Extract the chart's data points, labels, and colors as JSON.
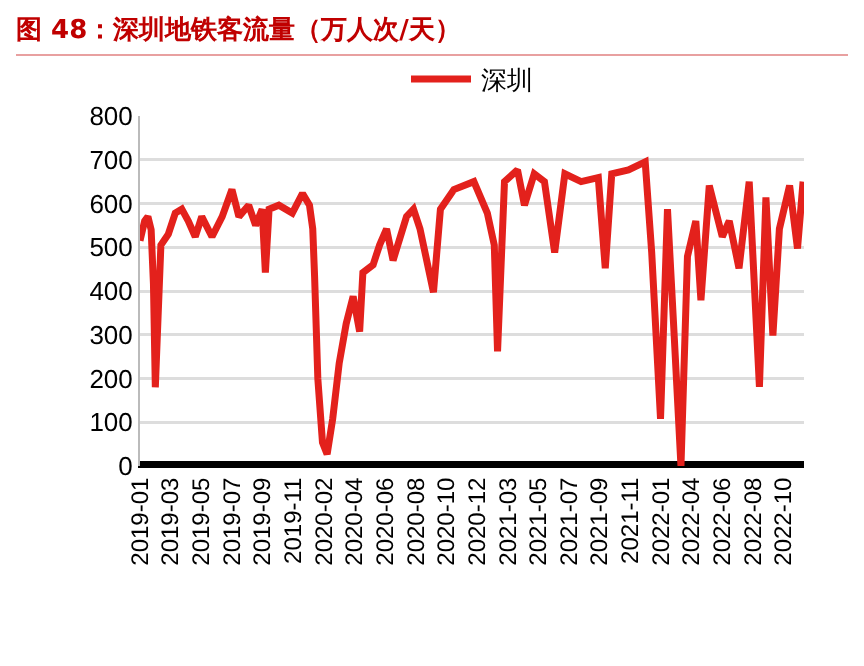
{
  "chart_data": {
    "type": "line",
    "title": "图 48：深圳地铁客流量（万人次/天）",
    "x": [
      "2019-01-01",
      "2019-01-11",
      "2019-01-18",
      "2019-01-25",
      "2019-01-30",
      "2019-02-03",
      "2019-02-09",
      "2019-02-15",
      "2019-03-03",
      "2019-03-18",
      "2019-04-01",
      "2019-04-15",
      "2019-04-30",
      "2019-05-14",
      "2019-06-05",
      "2019-06-27",
      "2019-07-18",
      "2019-08-02",
      "2019-08-23",
      "2019-09-07",
      "2019-09-21",
      "2019-09-28",
      "2019-10-06",
      "2019-10-27",
      "2019-11-25",
      "2019-12-17",
      "2020-01-01",
      "2020-01-08",
      "2020-01-12",
      "2020-01-19",
      "2020-01-29",
      "2020-02-08",
      "2020-02-20",
      "2020-03-05",
      "2020-03-20",
      "2020-04-04",
      "2020-04-18",
      "2020-04-25",
      "2020-05-17",
      "2020-05-31",
      "2020-06-15",
      "2020-06-29",
      "2020-07-28",
      "2020-08-12",
      "2020-08-26",
      "2020-09-24",
      "2020-10-09",
      "2020-11-07",
      "2020-12-20",
      "2021-01-18",
      "2021-02-02",
      "2021-02-09",
      "2021-02-24",
      "2021-03-24",
      "2021-04-08",
      "2021-04-29",
      "2021-05-21",
      "2021-06-12",
      "2021-07-04",
      "2021-08-08",
      "2021-09-14",
      "2021-09-29",
      "2021-10-13",
      "2021-11-18",
      "2021-12-24",
      "2022-01-07",
      "2022-01-26",
      "2022-02-10",
      "2022-02-24",
      "2022-03-11",
      "2022-03-25",
      "2022-04-12",
      "2022-04-23",
      "2022-05-11",
      "2022-06-08",
      "2022-06-23",
      "2022-07-14",
      "2022-08-05",
      "2022-08-27",
      "2022-09-10",
      "2022-09-25",
      "2022-10-09",
      "2022-10-31",
      "2022-11-17",
      "2022-11-29"
    ],
    "series": [
      {
        "name": "深圳",
        "color": "#e3211c",
        "values": [
          515,
          560,
          570,
          540,
          415,
          180,
          343,
          505,
          530,
          578,
          587,
          560,
          524,
          570,
          524,
          570,
          632,
          570,
          596,
          550,
          587,
          442,
          587,
          596,
          578,
          623,
          596,
          542,
          433,
          199,
          54,
          27,
          108,
          235,
          325,
          388,
          307,
          442,
          460,
          505,
          542,
          470,
          570,
          587,
          542,
          397,
          587,
          632,
          650,
          578,
          505,
          262,
          650,
          677,
          596,
          668,
          650,
          488,
          668,
          650,
          659,
          452,
          668,
          677,
          695,
          488,
          108,
          587,
          307,
          0,
          479,
          560,
          379,
          641,
          524,
          560,
          452,
          650,
          181,
          614,
          298,
          542,
          641,
          497,
          650
        ]
      }
    ],
    "xlim": [
      "2019-01-01",
      "2022-12-01"
    ],
    "xticks": [
      {
        "value": "2019-01-01",
        "label": "2019-01"
      },
      {
        "value": "2019-03-08",
        "label": "2019-03"
      },
      {
        "value": "2019-05-13",
        "label": "2019-05"
      },
      {
        "value": "2019-07-18",
        "label": "2019-07"
      },
      {
        "value": "2019-09-22",
        "label": "2019-09"
      },
      {
        "value": "2019-11-27",
        "label": "2019-11"
      },
      {
        "value": "2020-02-01",
        "label": "2020-02"
      },
      {
        "value": "2020-04-07",
        "label": "2020-04"
      },
      {
        "value": "2020-06-12",
        "label": "2020-06"
      },
      {
        "value": "2020-08-17",
        "label": "2020-08"
      },
      {
        "value": "2020-10-22",
        "label": "2020-10"
      },
      {
        "value": "2020-12-27",
        "label": "2020-12"
      },
      {
        "value": "2021-03-03",
        "label": "2021-03"
      },
      {
        "value": "2021-05-08",
        "label": "2021-05"
      },
      {
        "value": "2021-07-13",
        "label": "2021-07"
      },
      {
        "value": "2021-09-17",
        "label": "2021-09"
      },
      {
        "value": "2021-11-22",
        "label": "2021-11"
      },
      {
        "value": "2022-01-27",
        "label": "2022-01"
      },
      {
        "value": "2022-04-03",
        "label": "2022-04"
      },
      {
        "value": "2022-06-08",
        "label": "2022-06"
      },
      {
        "value": "2022-08-13",
        "label": "2022-08"
      },
      {
        "value": "2022-10-18",
        "label": "2022-10"
      }
    ],
    "ylim": [
      0,
      800
    ],
    "yticks": [
      0,
      100,
      200,
      300,
      400,
      500,
      600,
      700,
      800
    ],
    "grid": "y",
    "legend": "top",
    "marker": "none",
    "line_style": "solid"
  }
}
